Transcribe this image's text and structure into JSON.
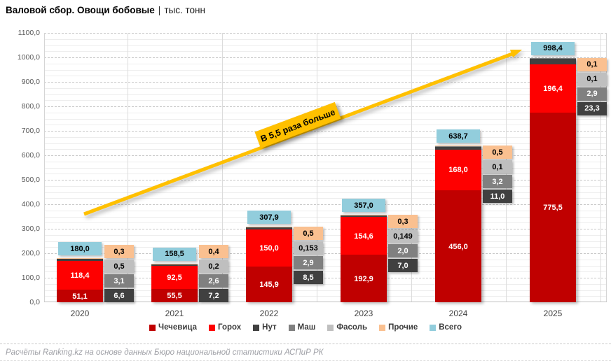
{
  "page": {
    "title_main": "Валовой сбор. Овощи бобовые",
    "title_sep": "|",
    "title_unit": "тыс. тонн",
    "footer": "Расчёты Ranking.kz на основе данных Бюро национальной статистики АСПиР РК"
  },
  "chart_data": {
    "type": "bar",
    "stacked": true,
    "title": "Валовой сбор. Овощи бобовые",
    "unit": "тыс. тонн",
    "categories": [
      "2020",
      "2021",
      "2022",
      "2023",
      "2024",
      "2025"
    ],
    "ylim": [
      0,
      1100
    ],
    "ytick_step": 100,
    "yminor_step": 25,
    "grid": true,
    "legend_position": "bottom",
    "series": [
      {
        "name": "Чечевица",
        "color": "#C00000",
        "label_color": "#FFFFFF",
        "values": [
          51.1,
          55.5,
          145.9,
          192.9,
          456.0,
          775.5
        ],
        "labels": [
          "51,1",
          "55,5",
          "145,9",
          "192,9",
          "456,0",
          "775,5"
        ]
      },
      {
        "name": "Горох",
        "color": "#FE0000",
        "label_color": "#FFFFFF",
        "values": [
          118.4,
          92.5,
          150.0,
          154.6,
          168.0,
          196.4
        ],
        "labels": [
          "118,4",
          "92,5",
          "150,0",
          "154,6",
          "168,0",
          "196,4"
        ]
      },
      {
        "name": "Нут",
        "color": "#404040",
        "label_color": "#FFFFFF",
        "values": [
          6.6,
          7.2,
          8.5,
          7.0,
          11.0,
          23.3
        ],
        "labels": [
          "6,6",
          "7,2",
          "8,5",
          "7,0",
          "11,0",
          "23,3"
        ]
      },
      {
        "name": "Маш",
        "color": "#808080",
        "label_color": "#FFFFFF",
        "values": [
          3.1,
          2.6,
          2.9,
          2.0,
          3.2,
          2.9
        ],
        "labels": [
          "3,1",
          "2,6",
          "2,9",
          "2,0",
          "3,2",
          "2,9"
        ]
      },
      {
        "name": "Фасоль",
        "color": "#BFBFBF",
        "label_color": "#000000",
        "values": [
          0.5,
          0.2,
          0.153,
          0.149,
          0.1,
          0.1
        ],
        "labels": [
          "0,5",
          "0,2",
          "0,153",
          "0,149",
          "0,1",
          "0,1"
        ]
      },
      {
        "name": "Прочие",
        "color": "#FAC090",
        "label_color": "#000000",
        "values": [
          0.3,
          0.4,
          0.5,
          0.3,
          0.5,
          0.1
        ],
        "labels": [
          "0,3",
          "0,4",
          "0,5",
          "0,3",
          "0,5",
          "0,1"
        ]
      }
    ],
    "totals": {
      "name": "Всего",
      "color": "#92CDDC",
      "label_color": "#000000",
      "values": [
        180.0,
        158.5,
        307.9,
        357.0,
        638.7,
        998.4
      ],
      "labels": [
        "180,0",
        "158,5",
        "307,9",
        "357,0",
        "638,7",
        "998,4"
      ]
    },
    "annotation": {
      "text": "В 5,5 раза больше",
      "box_color": "#FFC000",
      "arrow_color": "#FFC000",
      "text_color": "#000000"
    }
  }
}
